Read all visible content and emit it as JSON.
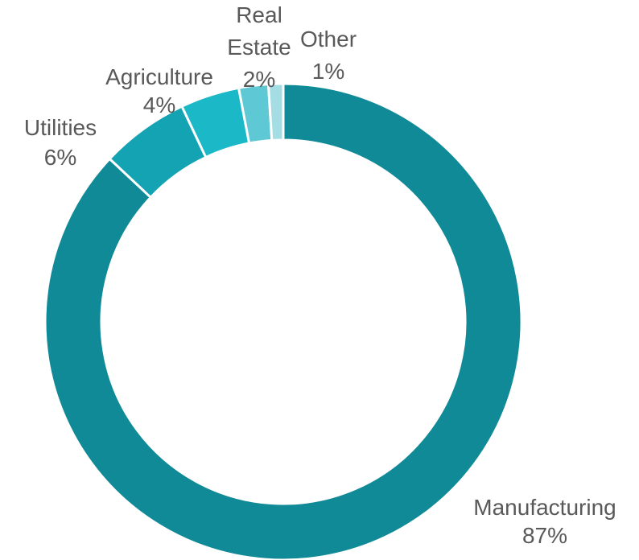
{
  "chart_data": {
    "type": "pie",
    "variant": "donut",
    "title": "",
    "legend": "none",
    "slices": [
      {
        "label": "Manufacturing",
        "value": 87,
        "value_label": "87%",
        "color": "#108a97"
      },
      {
        "label": "Utilities",
        "value": 6,
        "value_label": "6%",
        "color": "#13a3b2"
      },
      {
        "label": "Agriculture",
        "value": 4,
        "value_label": "4%",
        "color": "#1bb8c7"
      },
      {
        "label": "Real Estate",
        "value": 2,
        "value_label": "2%",
        "color": "#5ec8d4"
      },
      {
        "label": "Other",
        "value": 1,
        "value_label": "1%",
        "color": "#a4dde4"
      }
    ]
  }
}
